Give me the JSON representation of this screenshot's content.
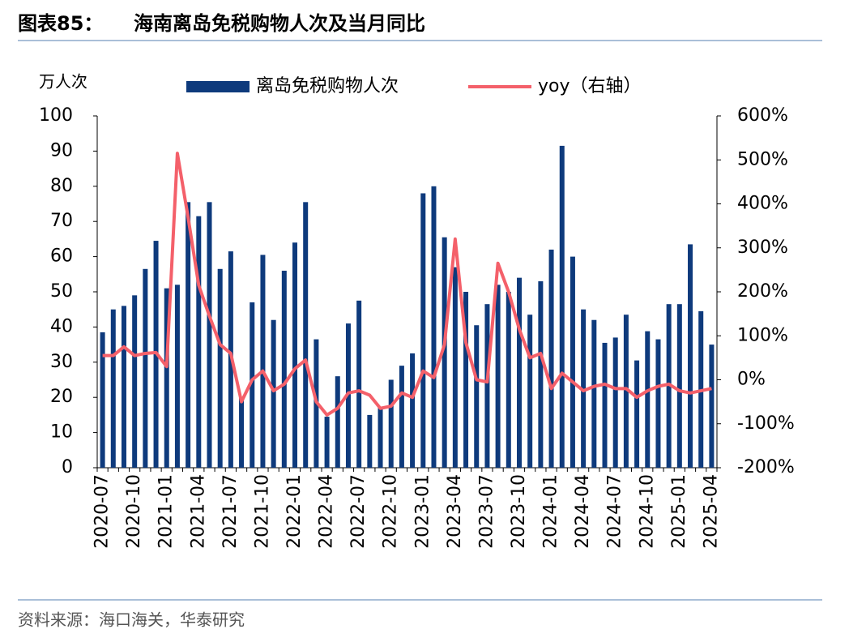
{
  "figure_number": "图表85：",
  "source": "资料来源：海口海关，华泰研究",
  "chart_data": {
    "type": "bar-line",
    "title": "海南离岛免税购物人次及当月同比",
    "y_label": "万人次",
    "categories": [
      "2020-07",
      null,
      null,
      "2020-10",
      null,
      null,
      "2021-01",
      null,
      null,
      "2021-04",
      null,
      null,
      "2021-07",
      null,
      null,
      "2021-10",
      null,
      null,
      "2022-01",
      null,
      null,
      "2022-04",
      null,
      null,
      "2022-07",
      null,
      null,
      "2022-10",
      null,
      null,
      "2023-01",
      null,
      null,
      "2023-04",
      null,
      null,
      "2023-07",
      null,
      null,
      "2023-10",
      null,
      null,
      "2024-01",
      null,
      null,
      "2024-04",
      null,
      null,
      "2024-07",
      null,
      null,
      "2024-10",
      null,
      null,
      "2025-01",
      null,
      null,
      "2025-04"
    ],
    "series": [
      {
        "name": "离岛免税购物人次",
        "color": "#0e3a7c",
        "type": "bar",
        "values": [
          38.5,
          45,
          46,
          49,
          56.5,
          64.5,
          51,
          52,
          75.5,
          71.5,
          75.5,
          56.5,
          61.5,
          20,
          47,
          60.5,
          42,
          56,
          64,
          75.5,
          36.5,
          14.5,
          26,
          41,
          47.5,
          15,
          17,
          25,
          29,
          32.5,
          78,
          80,
          65.5,
          57,
          50,
          40.5,
          46.5,
          52,
          50,
          54,
          43.5,
          53,
          62,
          91.5,
          60,
          45,
          42,
          35.5,
          37,
          43.5,
          30.5,
          38.8,
          36.5,
          46.5,
          46.5,
          63.5,
          44.5,
          35
        ]
      },
      {
        "name": "yoy（右轴）",
        "color": "#f4606a",
        "type": "line",
        "axis": "y2",
        "values": [
          55,
          55,
          75,
          55,
          60,
          62,
          30,
          515,
          370,
          215,
          145,
          80,
          60,
          -50,
          0,
          20,
          -25,
          -10,
          25,
          45,
          -50,
          -80,
          -65,
          -30,
          -25,
          -35,
          -65,
          -60,
          -30,
          -40,
          20,
          5,
          80,
          320,
          85,
          0,
          -5,
          265,
          200,
          115,
          50,
          60,
          -20,
          15,
          -5,
          -25,
          -15,
          -10,
          -20,
          -20,
          -40,
          -25,
          -15,
          -10,
          -25,
          -30,
          -25,
          -20
        ]
      }
    ],
    "ylim": [
      0,
      100
    ],
    "yticks": [
      0,
      10,
      20,
      30,
      40,
      50,
      60,
      70,
      80,
      90,
      100
    ],
    "y2lim": [
      -200,
      600
    ],
    "y2ticks": [
      {
        "value": -200,
        "label": "-200%"
      },
      {
        "value": -100,
        "label": "-100%"
      },
      {
        "value": 0,
        "label": "0%"
      },
      {
        "value": 100,
        "label": "100%"
      },
      {
        "value": 200,
        "label": "200%"
      },
      {
        "value": 300,
        "label": "300%"
      },
      {
        "value": 400,
        "label": "400%"
      },
      {
        "value": 500,
        "label": "500%"
      },
      {
        "value": 600,
        "label": "600%"
      }
    ]
  }
}
